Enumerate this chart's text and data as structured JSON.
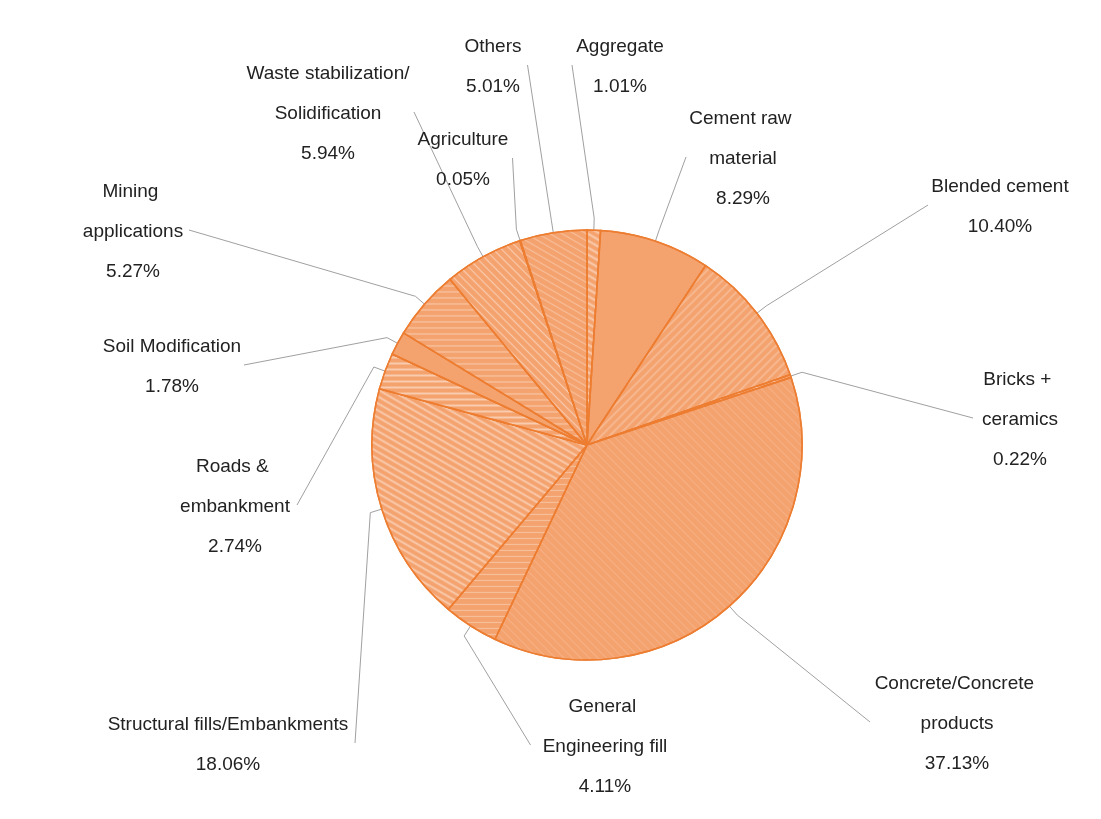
{
  "chart_data": {
    "type": "pie",
    "categories": [
      "Aggregate",
      "Cement raw material",
      "Blended cement",
      "Bricks + ceramics",
      "Concrete/Concrete products",
      "General Engineering fill",
      "Structural fills/Embankments",
      "Roads & embankment",
      "Soil Modification",
      "Mining applications",
      "Waste stabilization/Solidification",
      "Agriculture",
      "Others"
    ],
    "values": [
      1.01,
      8.29,
      10.4,
      0.22,
      37.13,
      4.11,
      18.06,
      2.74,
      1.78,
      5.27,
      5.94,
      0.05,
      5.01
    ],
    "value_labels": [
      "1.01%",
      "8.29%",
      "10.40%",
      "0.22%",
      "37.13%",
      "4.11%",
      "18.06%",
      "2.74%",
      "1.78%",
      "5.27%",
      "5.94%",
      "0.05%",
      "5.01%"
    ],
    "colors": [
      "#f4a26e",
      "#f4a26e",
      "#f4a26e",
      "#f4a26e",
      "#f4a26e",
      "#f4a26e",
      "#f4a26e",
      "#f4a26e",
      "#f4a26e",
      "#f4a26e",
      "#f4a26e",
      "#f4a26e",
      "#f4a26e"
    ],
    "legend": false
  }
}
